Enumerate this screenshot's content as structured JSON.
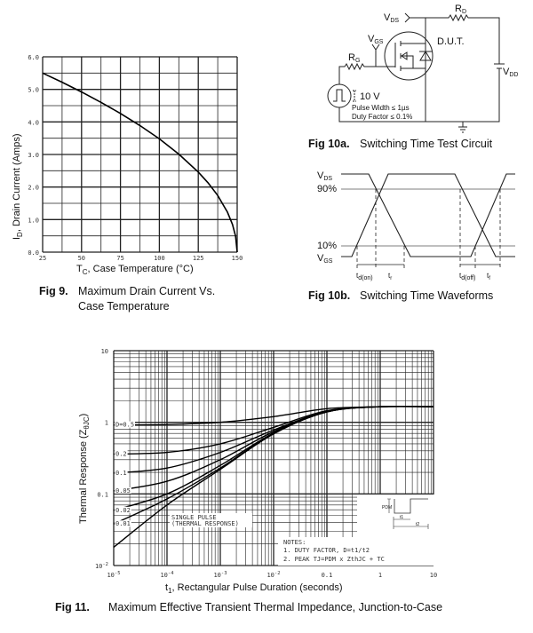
{
  "fig9": {
    "caption_num": "Fig 9.",
    "caption_line1": "Maximum Drain Current Vs.",
    "caption_line2": "Case Temperature",
    "ylabel_main": "I",
    "ylabel_sub": "D",
    "ylabel_rest": ", Drain Current (Amps)",
    "xlabel_main": "T",
    "xlabel_sub": "C",
    "xlabel_rest": ", Case Temperature (°C)"
  },
  "fig10a": {
    "caption_num": "Fig 10a.",
    "caption_text": "Switching Time Test Circuit",
    "vds": {
      "main": "V",
      "sub": "DS"
    },
    "rd": {
      "main": "R",
      "sub": "D"
    },
    "vgs": {
      "main": "V",
      "sub": "GS"
    },
    "rg": {
      "main": "R",
      "sub": "G"
    },
    "vdd": {
      "main": "V",
      "sub": "DD"
    },
    "dut": "D.U.T.",
    "pulse_amp": "10 V",
    "pulse_width": "Pulse Width ≤ 1µs",
    "duty_factor": "Duty Factor ≤ 0.1%"
  },
  "fig10b": {
    "caption_num": "Fig 10b.",
    "caption_text": "Switching Time Waveforms",
    "vds": {
      "main": "V",
      "sub": "DS"
    },
    "vgs": {
      "main": "V",
      "sub": "GS"
    },
    "level_90": "90%",
    "level_10": "10%",
    "td_on": {
      "main": "t",
      "sub": "d(on)"
    },
    "tr": {
      "main": "t",
      "sub": "r"
    },
    "td_off": {
      "main": "t",
      "sub": "d(off)"
    },
    "tf": {
      "main": "t",
      "sub": "f"
    }
  },
  "fig11": {
    "caption_num": "Fig 11.",
    "caption_text": "Maximum Effective Transient Thermal Impedance, Junction-to-Case",
    "ylabel_main": "Thermal Response (Z",
    "ylabel_sub": "θJC",
    "ylabel_end": ")",
    "xlabel_main": "t",
    "xlabel_sub": "1",
    "xlabel_rest": ", Rectangular Pulse Duration (seconds)",
    "single_pulse_1": "SINGLE PULSE",
    "single_pulse_2": "(THERMAL RESPONSE)",
    "notes_title": "NOTES:",
    "note1": "1. DUTY FACTOR, D=t1/t2",
    "note2": "2. PEAK TJ=PDM x ZthJC + TC",
    "inset_pdm": "PDM",
    "inset_t1": "t1",
    "inset_t2": "t2"
  },
  "chart_data": [
    {
      "type": "line",
      "title": "Fig 9. Maximum Drain Current Vs. Case Temperature",
      "xlabel": "TC, Case Temperature (°C)",
      "ylabel": "ID, Drain Current (Amps)",
      "xlim": [
        25,
        150
      ],
      "ylim": [
        0,
        6
      ],
      "xticks": [
        "25",
        "50",
        "75",
        "100",
        "125",
        "150"
      ],
      "yticks": [
        "0.0",
        "1.0",
        "2.0",
        "3.0",
        "4.0",
        "5.0",
        "6.0"
      ],
      "grid": true,
      "x": [
        25,
        37.5,
        50,
        62.5,
        75,
        87.5,
        100,
        112.5,
        125,
        131.25,
        137.5,
        143.75,
        147,
        149,
        150
      ],
      "y": [
        5.5,
        5.22,
        4.92,
        4.6,
        4.26,
        3.89,
        3.48,
        3.01,
        2.46,
        2.13,
        1.74,
        1.23,
        0.85,
        0.49,
        0
      ]
    },
    {
      "type": "line",
      "title": "Fig 11. Maximum Effective Transient Thermal Impedance, Junction-to-Case",
      "xlabel": "t1, Rectangular Pulse Duration (seconds)",
      "ylabel": "Thermal Response (ZθJC)",
      "xscale": "log",
      "yscale": "log",
      "xlim": [
        1e-05,
        10
      ],
      "ylim": [
        0.01,
        10
      ],
      "xticks": [
        {
          "base": "10",
          "exp": "-5"
        },
        {
          "base": "10",
          "exp": "-4"
        },
        {
          "base": "10",
          "exp": "-3"
        },
        {
          "base": "10",
          "exp": "-2"
        },
        {
          "base": "0.1",
          "exp": ""
        },
        {
          "base": "1",
          "exp": ""
        },
        {
          "base": "10",
          "exp": ""
        }
      ],
      "yticks": [
        {
          "base": "10",
          "exp": "-2"
        },
        {
          "base": "0.1",
          "exp": ""
        },
        {
          "base": "1",
          "exp": ""
        },
        {
          "base": "10",
          "exp": ""
        }
      ],
      "grid": true,
      "x": [
        1e-05,
        0.0001,
        0.001,
        0.01,
        0.1,
        1,
        10
      ],
      "series": [
        {
          "name": "D=0.5",
          "values": [
            0.92,
            0.93,
            1.0,
            1.2,
            1.55,
            1.65,
            1.65
          ]
        },
        {
          "name": "0.2",
          "values": [
            0.36,
            0.38,
            0.5,
            0.85,
            1.45,
            1.65,
            1.65
          ]
        },
        {
          "name": "0.1",
          "values": [
            0.195,
            0.23,
            0.38,
            0.78,
            1.42,
            1.65,
            1.65
          ]
        },
        {
          "name": "0.05",
          "values": [
            0.11,
            0.15,
            0.3,
            0.74,
            1.4,
            1.65,
            1.65
          ]
        },
        {
          "name": "0.02",
          "values": [
            0.059,
            0.1,
            0.25,
            0.71,
            1.4,
            1.65,
            1.65
          ]
        },
        {
          "name": "0.01",
          "values": [
            0.038,
            0.085,
            0.23,
            0.7,
            1.4,
            1.65,
            1.65
          ]
        },
        {
          "name": "SINGLE PULSE (THERMAL RESPONSE)",
          "values": [
            0.018,
            0.07,
            0.22,
            0.69,
            1.4,
            1.65,
            1.65
          ]
        }
      ]
    }
  ]
}
